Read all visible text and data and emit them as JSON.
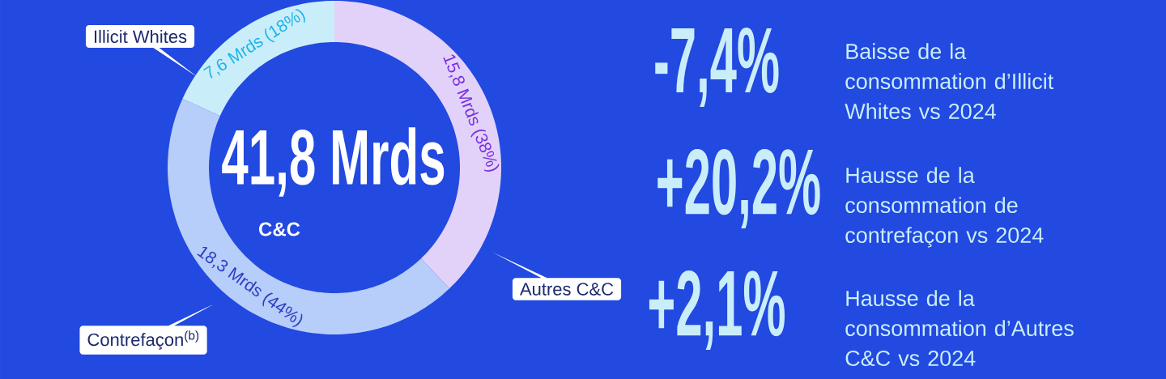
{
  "chart_data": {
    "type": "donut",
    "categories": [
      "Autres C&C",
      "Contrefaçon$^{(b)}$",
      "Illicit Whites"
    ],
    "values": [
      15.8,
      18.3,
      7.6
    ],
    "colors": [
      "#e2d2fa",
      "#b7cdfa",
      "#c9eefa"
    ],
    "value_labels": [
      "15,8 Mrds (38%)",
      "18,3 Mrds (44%)",
      "7,6 Mrds (18%)"
    ],
    "annotations": [
      "41,8 Mrds",
      "C&C",
      "-7,4%",
      "Baisse de la consommation d’Illicit Whites vs 2024",
      "+20,2%",
      "Hausse de la consommation de contrefaçon vs 2024",
      "+2,1%",
      "Hausse de la consommation d’Autres C&C vs 2024"
    ]
  }
}
